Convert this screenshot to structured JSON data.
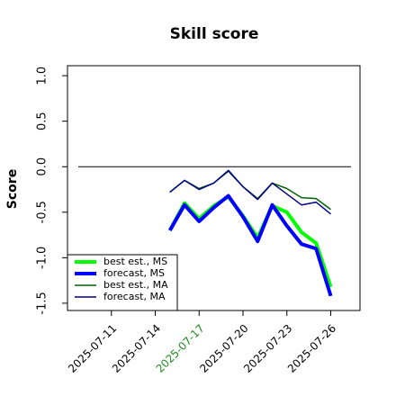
{
  "chart_data": {
    "type": "line",
    "title": "Skill score",
    "ylabel": "Score",
    "x": [
      "2025-07-15",
      "2025-07-16",
      "2025-07-17",
      "2025-07-18",
      "2025-07-19",
      "2025-07-20",
      "2025-07-21",
      "2025-07-22",
      "2025-07-23",
      "2025-07-24",
      "2025-07-25",
      "2025-07-26"
    ],
    "series": [
      {
        "name": "best est., MS",
        "color": "#00ff00",
        "width": 4,
        "values": [
          -0.7,
          -0.4,
          -0.57,
          -0.43,
          -0.33,
          -0.54,
          -0.78,
          -0.43,
          -0.5,
          -0.72,
          -0.84,
          -1.32
        ]
      },
      {
        "name": "forecast, MS",
        "color": "#0000ff",
        "width": 4,
        "values": [
          -0.7,
          -0.42,
          -0.6,
          -0.45,
          -0.32,
          -0.55,
          -0.82,
          -0.42,
          -0.65,
          -0.85,
          -0.9,
          -1.42
        ]
      },
      {
        "name": "best est., MA",
        "color": "#006400",
        "width": 1.5,
        "values": [
          -0.28,
          -0.15,
          -0.24,
          -0.18,
          -0.05,
          -0.22,
          -0.35,
          -0.18,
          -0.24,
          -0.34,
          -0.35,
          -0.47
        ]
      },
      {
        "name": "forecast, MA",
        "color": "#00008b",
        "width": 1.5,
        "values": [
          -0.28,
          -0.15,
          -0.25,
          -0.18,
          -0.04,
          -0.22,
          -0.36,
          -0.18,
          -0.3,
          -0.42,
          -0.39,
          -0.52
        ]
      }
    ],
    "xlim": [
      "2025-07-08",
      "2025-07-28"
    ],
    "xticks": [
      "2025-07-11",
      "2025-07-14",
      "2025-07-17",
      "2025-07-20",
      "2025-07-23",
      "2025-07-26"
    ],
    "today": "2025-07-17",
    "today_color": "#228b22",
    "ylim": [
      -1.58,
      1.11
    ],
    "yticks": [
      {
        "value": 1,
        "label": "1.0"
      },
      0.5,
      {
        "value": 0,
        "label": "0.0"
      },
      -0.5,
      {
        "value": -1,
        "label": "-1.0"
      },
      -1.5
    ],
    "reference_line": 0,
    "legend": "bottomleft"
  }
}
